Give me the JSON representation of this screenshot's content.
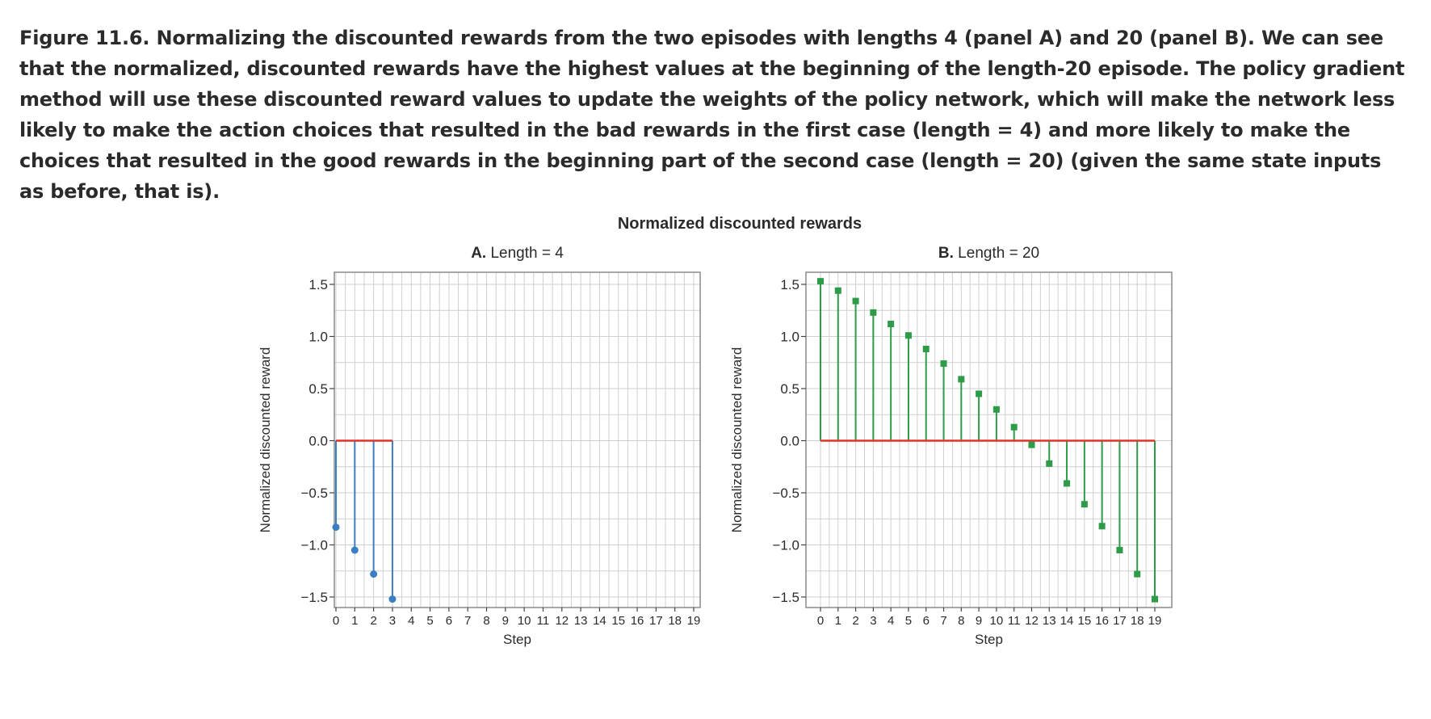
{
  "caption": {
    "label": "Figure 11.6.",
    "text": "Normalizing the discounted rewards from the two episodes with lengths 4 (panel A) and 20 (panel B). We can see that the normalized, discounted rewards have the highest values at the beginning of the length-20 episode. The policy gradient method will use these discounted reward values to update the weights of the policy network, which will make the network less likely to make the action choices that resulted in the bad rewards in the first case (length = 4) and more likely to make the choices that resulted in the good rewards in the beginning part of the second case (length = 20) (given the same state inputs as before, that is)."
  },
  "figure_title": "Normalized discounted rewards",
  "colors": {
    "panel_a_marker": "#3a7fc1",
    "panel_b_marker": "#2e9b48",
    "baseline": "#e0342a",
    "grid": "#cfcfcf",
    "frame": "#8a8a8a",
    "text": "#2b2b2b"
  },
  "chart_data": [
    {
      "type": "stem",
      "panel": "A",
      "title_letter": "A.",
      "title_rest": " Length = 4",
      "xlabel": "Step",
      "ylabel": "Normalized discounted reward",
      "xlim": [
        0,
        19
      ],
      "ylim": [
        -1.5,
        1.5
      ],
      "xticks": [
        0,
        1,
        2,
        3,
        4,
        5,
        6,
        7,
        8,
        9,
        10,
        11,
        12,
        13,
        14,
        15,
        16,
        17,
        18,
        19
      ],
      "yticks": [
        1.5,
        1.0,
        0.5,
        0.0,
        -0.5,
        -1.0,
        -1.5
      ],
      "ytick_labels": [
        "1.5",
        "1.0",
        "0.5",
        "0.0",
        "−0.5",
        "−1.0",
        "−1.5"
      ],
      "grid": true,
      "marker": "circle",
      "x": [
        0,
        1,
        2,
        3
      ],
      "y": [
        -0.83,
        -1.05,
        -1.28,
        -1.52
      ]
    },
    {
      "type": "stem",
      "panel": "B",
      "title_letter": "B.",
      "title_rest": " Length = 20",
      "xlabel": "Step",
      "ylabel": "Normalized discounted reward",
      "xlim": [
        0,
        19
      ],
      "ylim": [
        -1.5,
        1.5
      ],
      "xticks": [
        0,
        1,
        2,
        3,
        4,
        5,
        6,
        7,
        8,
        9,
        10,
        11,
        12,
        13,
        14,
        15,
        16,
        17,
        18,
        19
      ],
      "yticks": [
        1.5,
        1.0,
        0.5,
        0.0,
        -0.5,
        -1.0,
        -1.5
      ],
      "ytick_labels": [
        "1.5",
        "1.0",
        "0.5",
        "0.0",
        "−0.5",
        "−1.0",
        "−1.5"
      ],
      "grid": true,
      "marker": "square",
      "x": [
        0,
        1,
        2,
        3,
        4,
        5,
        6,
        7,
        8,
        9,
        10,
        11,
        12,
        13,
        14,
        15,
        16,
        17,
        18,
        19
      ],
      "y": [
        1.53,
        1.44,
        1.34,
        1.23,
        1.12,
        1.01,
        0.88,
        0.74,
        0.59,
        0.45,
        0.3,
        0.13,
        -0.04,
        -0.22,
        -0.41,
        -0.61,
        -0.82,
        -1.05,
        -1.28,
        -1.52
      ]
    }
  ]
}
